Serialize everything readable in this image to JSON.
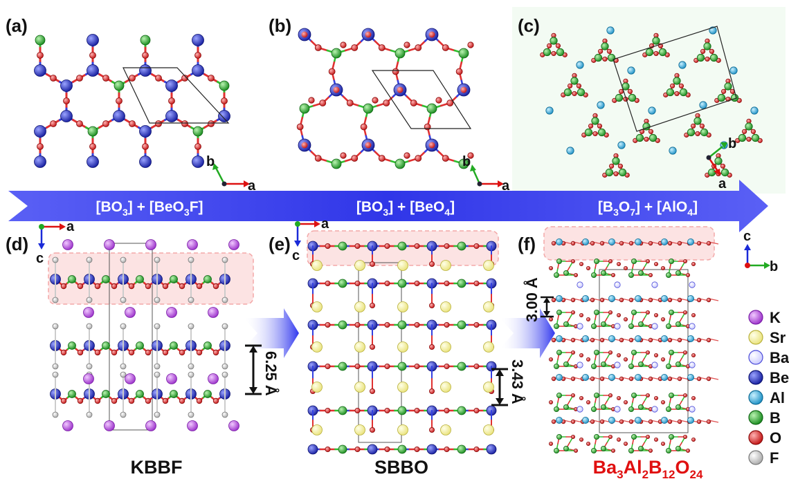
{
  "panels": {
    "a": "(a)",
    "b": "(b)",
    "c": "(c)",
    "d": "(d)",
    "e": "(e)",
    "f": "(f)"
  },
  "axes": {
    "a": "a",
    "b": "b",
    "c": "c"
  },
  "band": {
    "left": {
      "main1": "[BO",
      "sub1": "3",
      "main2": "] + [BeO",
      "sub2": "3",
      "main3": "F]"
    },
    "mid": {
      "main1": "[BO",
      "sub1": "3",
      "main2": "] + [BeO",
      "sub2": "4",
      "main3": "]"
    },
    "right": {
      "main1": "[B",
      "sub1": "3",
      "main2": "O",
      "sub2": "7",
      "main3": "] + [AlO",
      "sub3": "4",
      "main4": "]"
    }
  },
  "names": {
    "kbbf": "KBBF",
    "sbbo": "SBBO",
    "third": {
      "m1": "Ba",
      "s1": "3",
      "m2": "Al",
      "s2": "2",
      "m3": "B",
      "s3": "12",
      "m4": "O",
      "s4": "24"
    }
  },
  "measures": {
    "d": "6.25 Å",
    "e": "3.43 Å",
    "f": "3.00 Å"
  },
  "legend": [
    {
      "label": "K",
      "color": "#b94ee0"
    },
    {
      "label": "Sr",
      "color": "#f5f3a6"
    },
    {
      "label": "Ba",
      "color": "#e8e8ff"
    },
    {
      "label": "Be",
      "color": "#2b35d6"
    },
    {
      "label": "Al",
      "color": "#36b7ea"
    },
    {
      "label": "B",
      "color": "#2fbf2f"
    },
    {
      "label": "O",
      "color": "#e82a2a"
    },
    {
      "label": "F",
      "color": "#e3e3e3"
    }
  ],
  "colors": {
    "arrow": "#3a3ff0",
    "highlight": "#fbdada",
    "title_red": "#e01010"
  }
}
